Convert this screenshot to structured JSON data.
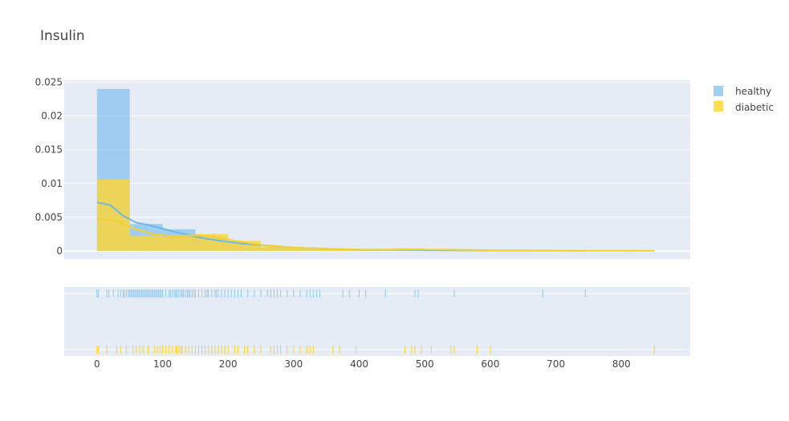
{
  "chart_data": {
    "type": "histogram",
    "title": "Insulin",
    "xlabel": "",
    "ylabel": "",
    "xlim": [
      -50,
      905
    ],
    "ylim": [
      -0.0012,
      0.0253
    ],
    "x_ticks": [
      0,
      100,
      200,
      300,
      400,
      500,
      600,
      700,
      800
    ],
    "y_ticks": [
      0,
      0.005,
      0.01,
      0.015,
      0.02,
      0.025
    ],
    "y_tick_labels": [
      "0",
      "0.005",
      "0.01",
      "0.015",
      "0.02",
      "0.025"
    ],
    "grid": true,
    "legend_position": "top-right",
    "series": [
      {
        "name": "healthy",
        "color": "#80c0f0",
        "bin_width": 50,
        "bins": [
          {
            "x0": 0,
            "density": 0.024
          },
          {
            "x0": 50,
            "density": 0.004
          },
          {
            "x0": 100,
            "density": 0.0032
          },
          {
            "x0": 150,
            "density": 0.002
          },
          {
            "x0": 200,
            "density": 0.0012
          },
          {
            "x0": 250,
            "density": 0.0006
          },
          {
            "x0": 300,
            "density": 0.0003
          },
          {
            "x0": 350,
            "density": 0.0002
          },
          {
            "x0": 400,
            "density": 0.0001
          },
          {
            "x0": 450,
            "density": 0.0001
          },
          {
            "x0": 500,
            "density": 5e-05
          },
          {
            "x0": 550,
            "density": 5e-05
          },
          {
            "x0": 600,
            "density": 0.0
          },
          {
            "x0": 650,
            "density": 5e-05
          },
          {
            "x0": 700,
            "density": 5e-05
          }
        ],
        "kde": [
          [
            0,
            0.0072
          ],
          [
            20,
            0.0068
          ],
          [
            40,
            0.0052
          ],
          [
            60,
            0.0042
          ],
          [
            80,
            0.0038
          ],
          [
            100,
            0.0033
          ],
          [
            120,
            0.0028
          ],
          [
            150,
            0.0021
          ],
          [
            180,
            0.0016
          ],
          [
            220,
            0.0011
          ],
          [
            260,
            0.0008
          ],
          [
            300,
            0.0005
          ],
          [
            350,
            0.0003
          ],
          [
            400,
            0.0002
          ],
          [
            450,
            0.00015
          ],
          [
            500,
            0.0001
          ],
          [
            600,
            6e-05
          ],
          [
            700,
            3e-05
          ],
          [
            745,
            2e-05
          ]
        ],
        "rug": [
          0,
          2,
          15,
          18,
          25,
          32,
          36,
          40,
          42,
          45,
          48,
          50,
          52,
          54,
          56,
          58,
          60,
          62,
          64,
          66,
          68,
          70,
          72,
          74,
          76,
          78,
          80,
          82,
          84,
          86,
          88,
          90,
          92,
          94,
          96,
          98,
          100,
          105,
          110,
          112,
          115,
          118,
          120,
          122,
          125,
          128,
          130,
          132,
          135,
          138,
          140,
          142,
          145,
          148,
          150,
          155,
          160,
          165,
          168,
          170,
          175,
          180,
          182,
          185,
          190,
          195,
          200,
          205,
          210,
          215,
          220,
          230,
          240,
          250,
          260,
          265,
          270,
          275,
          280,
          290,
          300,
          310,
          320,
          325,
          330,
          335,
          340,
          375,
          385,
          400,
          410,
          440,
          485,
          490,
          545,
          680,
          745
        ]
      },
      {
        "name": "diabetic",
        "color": "#ffd633",
        "bin_width": 50,
        "bins": [
          {
            "x0": 0,
            "density": 0.0106
          },
          {
            "x0": 50,
            "density": 0.0022
          },
          {
            "x0": 100,
            "density": 0.002
          },
          {
            "x0": 150,
            "density": 0.0025
          },
          {
            "x0": 200,
            "density": 0.0015
          },
          {
            "x0": 250,
            "density": 0.0006
          },
          {
            "x0": 300,
            "density": 0.0005
          },
          {
            "x0": 350,
            "density": 0.0003
          },
          {
            "x0": 400,
            "density": 0.0001
          },
          {
            "x0": 450,
            "density": 0.0004
          },
          {
            "x0": 500,
            "density": 0.0003
          },
          {
            "x0": 550,
            "density": 0.0002
          },
          {
            "x0": 600,
            "density": 0.0001
          },
          {
            "x0": 650,
            "density": 5e-05
          },
          {
            "x0": 700,
            "density": 5e-05
          },
          {
            "x0": 750,
            "density": 5e-05
          },
          {
            "x0": 800,
            "density": 5e-05
          }
        ],
        "kde": [
          [
            0,
            0.0048
          ],
          [
            30,
            0.0044
          ],
          [
            60,
            0.0032
          ],
          [
            90,
            0.0024
          ],
          [
            120,
            0.0022
          ],
          [
            150,
            0.0023
          ],
          [
            180,
            0.0021
          ],
          [
            210,
            0.0015
          ],
          [
            250,
            0.0009
          ],
          [
            300,
            0.0005
          ],
          [
            350,
            0.0003
          ],
          [
            400,
            0.0002
          ],
          [
            450,
            0.0002
          ],
          [
            500,
            0.0002
          ],
          [
            550,
            0.00015
          ],
          [
            600,
            0.0001
          ],
          [
            700,
            5e-05
          ],
          [
            800,
            3e-05
          ],
          [
            850,
            2e-05
          ]
        ],
        "rug": [
          0,
          2,
          15,
          30,
          36,
          45,
          55,
          60,
          65,
          70,
          78,
          88,
          92,
          96,
          100,
          105,
          110,
          115,
          120,
          122,
          125,
          128,
          130,
          135,
          140,
          145,
          150,
          155,
          160,
          165,
          170,
          175,
          180,
          185,
          190,
          195,
          200,
          210,
          215,
          225,
          230,
          240,
          250,
          265,
          270,
          275,
          280,
          290,
          300,
          310,
          320,
          325,
          330,
          360,
          370,
          395,
          470,
          480,
          485,
          495,
          510,
          540,
          545,
          580,
          600,
          850
        ]
      }
    ]
  }
}
